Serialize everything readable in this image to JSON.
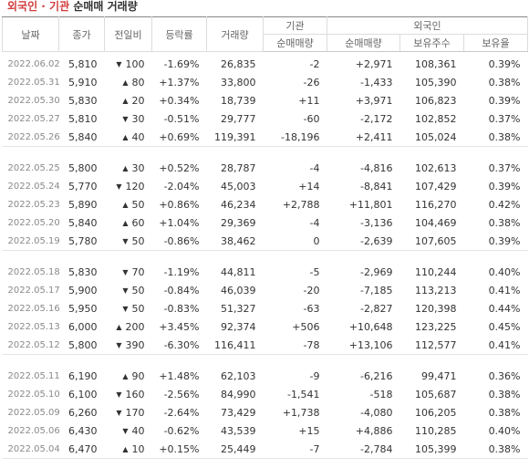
{
  "title": {
    "part1": "외국인 · 기관",
    "part2": "순매매 거래량"
  },
  "headers": {
    "date": "날짜",
    "close": "종가",
    "change": "전일비",
    "rate": "등락률",
    "volume": "거래량",
    "institution": "기관",
    "inst_net": "순매매량",
    "foreign": "외국인",
    "frgn_net": "순매매량",
    "frgn_holdings": "보유주수",
    "frgn_ratio": "보유율"
  },
  "colors": {
    "up": "#d13c3c",
    "down": "#2e6bd6",
    "title_accent": "#d13c3c"
  },
  "arrow_icons": {
    "up": "▲",
    "down": "▼"
  },
  "groups": [
    [
      {
        "date": "2022.06.02",
        "close": "5,810",
        "dir": "down",
        "change": "100",
        "rate": "-1.69%",
        "volume": "26,835",
        "inst": "-2",
        "frgn": "+2,971",
        "holdings": "108,361",
        "ratio": "0.39%"
      },
      {
        "date": "2022.05.31",
        "close": "5,910",
        "dir": "up",
        "change": "80",
        "rate": "+1.37%",
        "volume": "33,800",
        "inst": "-26",
        "frgn": "-1,433",
        "holdings": "105,390",
        "ratio": "0.38%"
      },
      {
        "date": "2022.05.30",
        "close": "5,830",
        "dir": "up",
        "change": "20",
        "rate": "+0.34%",
        "volume": "18,739",
        "inst": "+11",
        "frgn": "+3,971",
        "holdings": "106,823",
        "ratio": "0.39%"
      },
      {
        "date": "2022.05.27",
        "close": "5,810",
        "dir": "down",
        "change": "30",
        "rate": "-0.51%",
        "volume": "29,777",
        "inst": "-60",
        "frgn": "-2,172",
        "holdings": "102,852",
        "ratio": "0.37%"
      },
      {
        "date": "2022.05.26",
        "close": "5,840",
        "dir": "up",
        "change": "40",
        "rate": "+0.69%",
        "volume": "119,391",
        "inst": "-18,196",
        "frgn": "+2,411",
        "holdings": "105,024",
        "ratio": "0.38%"
      }
    ],
    [
      {
        "date": "2022.05.25",
        "close": "5,800",
        "dir": "up",
        "change": "30",
        "rate": "+0.52%",
        "volume": "28,787",
        "inst": "-4",
        "frgn": "-4,816",
        "holdings": "102,613",
        "ratio": "0.37%"
      },
      {
        "date": "2022.05.24",
        "close": "5,770",
        "dir": "down",
        "change": "120",
        "rate": "-2.04%",
        "volume": "45,003",
        "inst": "+14",
        "frgn": "-8,841",
        "holdings": "107,429",
        "ratio": "0.39%"
      },
      {
        "date": "2022.05.23",
        "close": "5,890",
        "dir": "up",
        "change": "50",
        "rate": "+0.86%",
        "volume": "46,234",
        "inst": "+2,788",
        "frgn": "+11,801",
        "holdings": "116,270",
        "ratio": "0.42%"
      },
      {
        "date": "2022.05.20",
        "close": "5,840",
        "dir": "up",
        "change": "60",
        "rate": "+1.04%",
        "volume": "29,369",
        "inst": "-4",
        "frgn": "-3,136",
        "holdings": "104,469",
        "ratio": "0.38%"
      },
      {
        "date": "2022.05.19",
        "close": "5,780",
        "dir": "down",
        "change": "50",
        "rate": "-0.86%",
        "volume": "38,462",
        "inst": "0",
        "frgn": "-2,639",
        "holdings": "107,605",
        "ratio": "0.39%"
      }
    ],
    [
      {
        "date": "2022.05.18",
        "close": "5,830",
        "dir": "down",
        "change": "70",
        "rate": "-1.19%",
        "volume": "44,811",
        "inst": "-5",
        "frgn": "-2,969",
        "holdings": "110,244",
        "ratio": "0.40%"
      },
      {
        "date": "2022.05.17",
        "close": "5,900",
        "dir": "down",
        "change": "50",
        "rate": "-0.84%",
        "volume": "46,039",
        "inst": "-20",
        "frgn": "-7,185",
        "holdings": "113,213",
        "ratio": "0.41%"
      },
      {
        "date": "2022.05.16",
        "close": "5,950",
        "dir": "down",
        "change": "50",
        "rate": "-0.83%",
        "volume": "51,327",
        "inst": "-63",
        "frgn": "-2,827",
        "holdings": "120,398",
        "ratio": "0.44%"
      },
      {
        "date": "2022.05.13",
        "close": "6,000",
        "dir": "up",
        "change": "200",
        "rate": "+3.45%",
        "volume": "92,374",
        "inst": "+506",
        "frgn": "+10,648",
        "holdings": "123,225",
        "ratio": "0.45%"
      },
      {
        "date": "2022.05.12",
        "close": "5,800",
        "dir": "down",
        "change": "390",
        "rate": "-6.30%",
        "volume": "116,411",
        "inst": "-78",
        "frgn": "+13,106",
        "holdings": "112,577",
        "ratio": "0.41%"
      }
    ],
    [
      {
        "date": "2022.05.11",
        "close": "6,190",
        "dir": "up",
        "change": "90",
        "rate": "+1.48%",
        "volume": "62,103",
        "inst": "-9",
        "frgn": "-6,216",
        "holdings": "99,471",
        "ratio": "0.36%"
      },
      {
        "date": "2022.05.10",
        "close": "6,100",
        "dir": "down",
        "change": "160",
        "rate": "-2.56%",
        "volume": "84,990",
        "inst": "-1,541",
        "frgn": "-518",
        "holdings": "105,687",
        "ratio": "0.38%"
      },
      {
        "date": "2022.05.09",
        "close": "6,260",
        "dir": "down",
        "change": "170",
        "rate": "-2.64%",
        "volume": "73,429",
        "inst": "+1,738",
        "frgn": "-4,080",
        "holdings": "106,205",
        "ratio": "0.38%"
      },
      {
        "date": "2022.05.06",
        "close": "6,430",
        "dir": "down",
        "change": "40",
        "rate": "-0.62%",
        "volume": "43,539",
        "inst": "+15",
        "frgn": "+4,886",
        "holdings": "110,285",
        "ratio": "0.40%"
      },
      {
        "date": "2022.05.04",
        "close": "6,470",
        "dir": "up",
        "change": "10",
        "rate": "+0.15%",
        "volume": "25,449",
        "inst": "-7",
        "frgn": "-2,784",
        "holdings": "105,399",
        "ratio": "0.38%"
      }
    ]
  ]
}
